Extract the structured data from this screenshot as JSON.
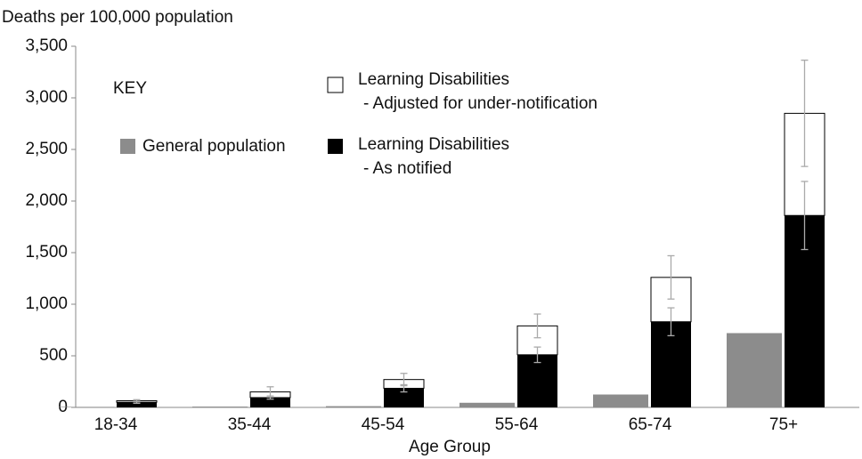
{
  "chart_data": {
    "type": "stacked-bar",
    "y_label": "Deaths per 100,000 population",
    "x_label": "Age Group",
    "legend_title": "KEY",
    "categories": [
      "18-34",
      "35-44",
      "45-54",
      "55-64",
      "65-74",
      "75+"
    ],
    "series": [
      {
        "name": "General population",
        "color": "#8c8c8c",
        "stack": "general",
        "values": [
          5,
          8,
          12,
          45,
          125,
          720
        ]
      },
      {
        "name": "Learning Disabilities",
        "legend_sublabel": "- As notified",
        "color": "#000000",
        "stack": "ld",
        "values": [
          50,
          95,
          185,
          510,
          830,
          1860
        ],
        "errors": [
          10,
          15,
          35,
          75,
          135,
          330
        ]
      },
      {
        "name": "Learning Disabilities",
        "legend_sublabel": "- Adjusted for under-notification",
        "color": "#ffffff",
        "stack": "ld",
        "values": [
          15,
          55,
          85,
          280,
          430,
          990
        ],
        "errors": [
          10,
          50,
          60,
          115,
          210,
          515
        ]
      }
    ],
    "ylim": [
      0,
      3500
    ],
    "yticks": [
      0,
      500,
      {
        "value": 1000,
        "label": "1,000"
      },
      {
        "value": 1500,
        "label": "1,500"
      },
      {
        "value": 2000,
        "label": "2,000"
      },
      {
        "value": 2500,
        "label": "2,500"
      },
      {
        "value": 3000,
        "label": "3,000"
      },
      {
        "value": 3500,
        "label": "3,500"
      }
    ],
    "grid": false
  }
}
